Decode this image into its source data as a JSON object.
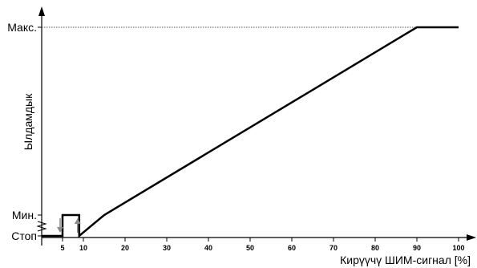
{
  "chart_data": {
    "type": "line",
    "title": "",
    "xlabel": "Кирүүчү ШИМ-сигнал [%]",
    "ylabel": "Ылдамдык",
    "xlim": [
      0,
      100
    ],
    "x_ticks": [
      5,
      10,
      20,
      30,
      40,
      50,
      60,
      70,
      80,
      90,
      100
    ],
    "y_levels": [
      "Стоп",
      "Мин.",
      "Макс."
    ],
    "grid": false,
    "series": [
      {
        "x": [
          0,
          5,
          5,
          9,
          9,
          15,
          90,
          100
        ],
        "y": [
          "Стоп",
          "Стоп",
          "Мин.",
          "Мин.",
          "Стоп",
          "Мин.",
          "Макс.",
          "Макс."
        ]
      }
    ],
    "hysteresis": {
      "off_at": 5,
      "on_at": 9
    },
    "max_reference_line": "dotted"
  },
  "colors": {
    "line": "#000000",
    "arrow": "#8c8c8c",
    "reference": "#555555"
  }
}
